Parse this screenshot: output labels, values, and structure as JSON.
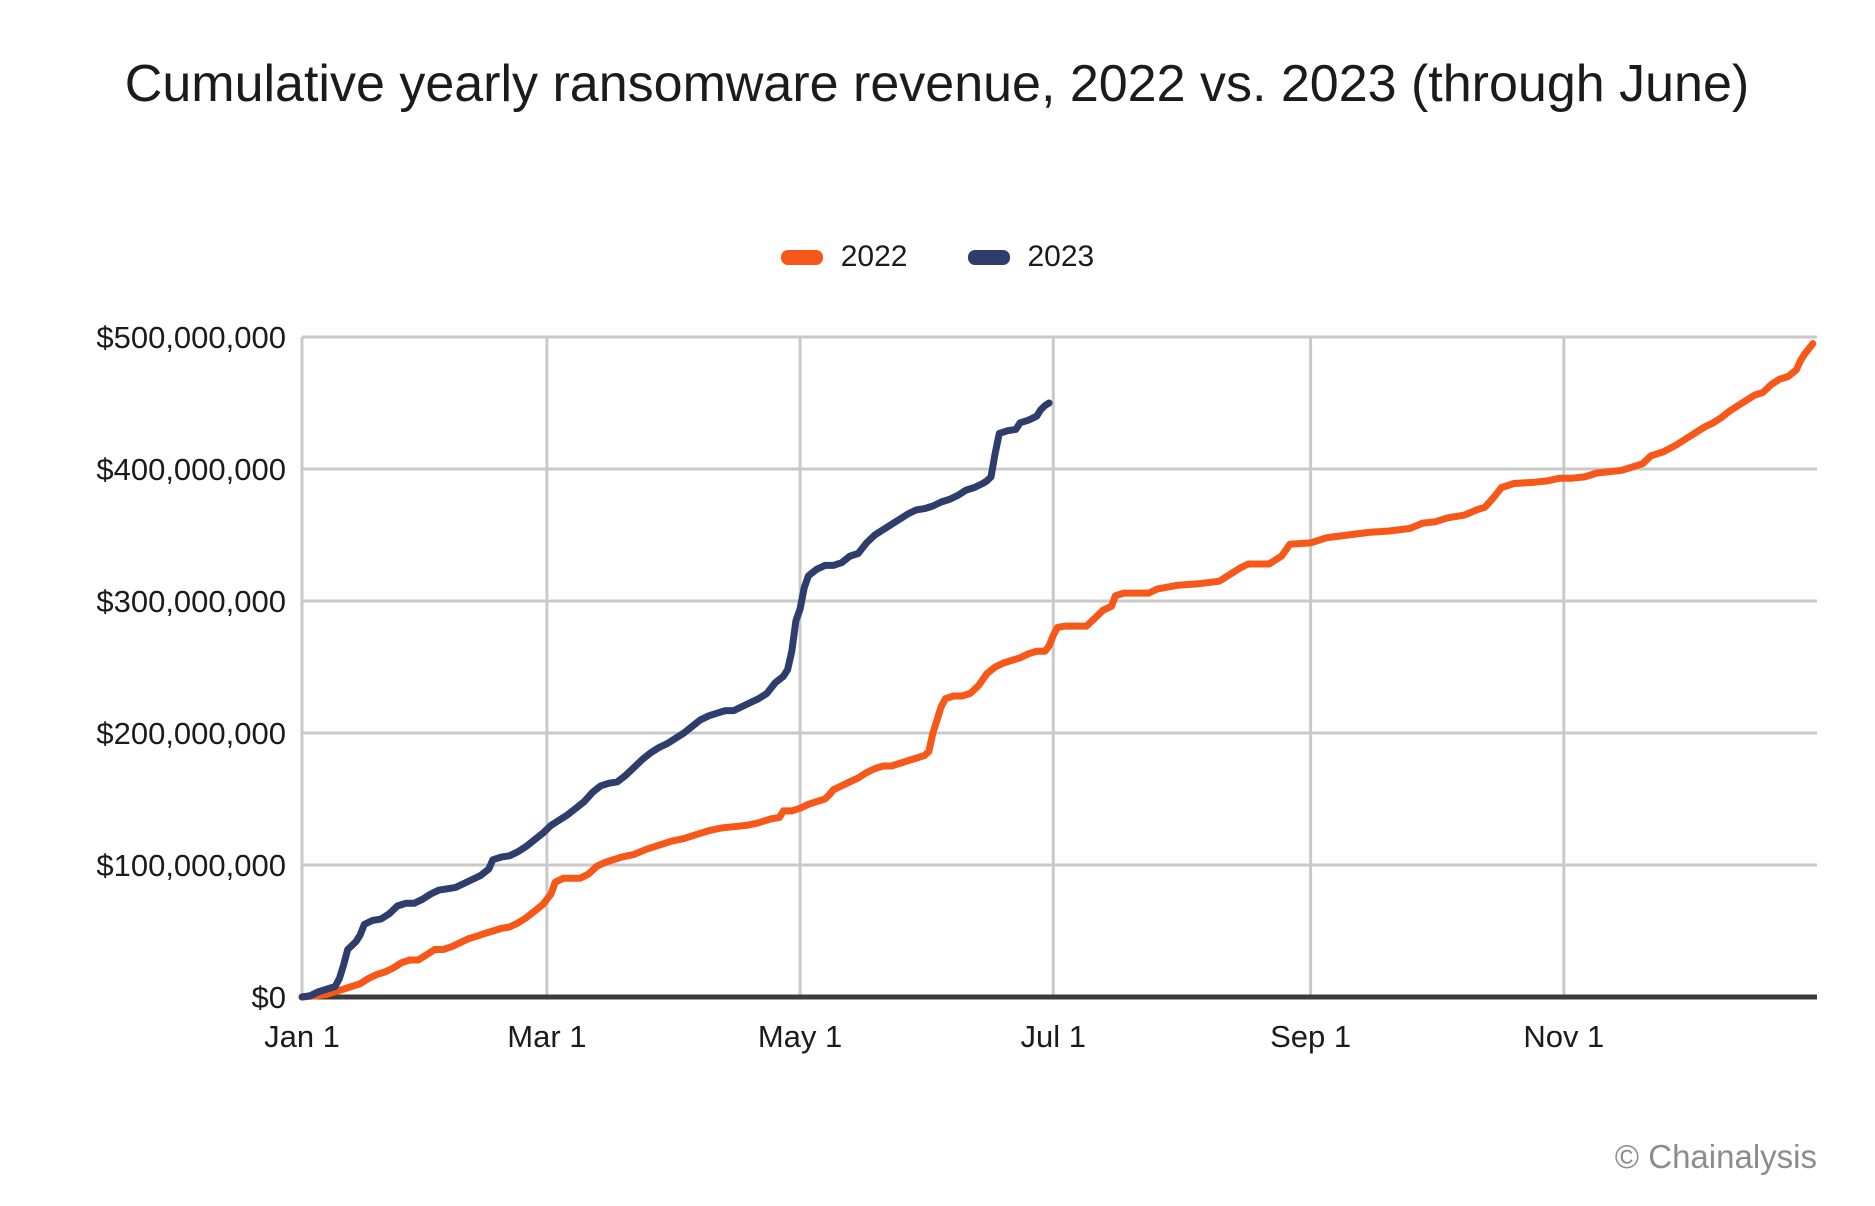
{
  "page": {
    "title": "Cumulative yearly ransomware revenue, 2022 vs. 2023 (through June)",
    "footer": "© Chainalysis",
    "background_color": "#ffffff",
    "title_color": "#1b1b1b",
    "footer_color": "#8b8b90"
  },
  "chart_data": {
    "type": "line",
    "title": "Cumulative yearly ransomware revenue, 2022 vs. 2023 (through June)",
    "x_unit": "day_of_year",
    "xlim": [
      1,
      366
    ],
    "ylim_usd": [
      0,
      500000000
    ],
    "grid": true,
    "grid_color": "#c9c9c9",
    "axis_color": "#3b3b3b",
    "legend_position": "top-center",
    "x_ticks": [
      {
        "day": 1,
        "label": "Jan 1"
      },
      {
        "day": 60,
        "label": "Mar 1"
      },
      {
        "day": 121,
        "label": "May 1"
      },
      {
        "day": 182,
        "label": "Jul 1"
      },
      {
        "day": 244,
        "label": "Sep 1"
      },
      {
        "day": 305,
        "label": "Nov 1"
      }
    ],
    "y_ticks": [
      {
        "value_usd_m": 0,
        "label": "$0"
      },
      {
        "value_usd_m": 100,
        "label": "$100,000,000"
      },
      {
        "value_usd_m": 200,
        "label": "$200,000,000"
      },
      {
        "value_usd_m": 300,
        "label": "$300,000,000"
      },
      {
        "value_usd_m": 400,
        "label": "$400,000,000"
      },
      {
        "value_usd_m": 500,
        "label": "$500,000,000"
      }
    ],
    "series": [
      {
        "name": "2022",
        "color": "#f8571a",
        "end_note": "full year, ends ~$495M",
        "points_day_usd_m": [
          [
            1,
            0
          ],
          [
            3,
            0.5
          ],
          [
            5,
            1
          ],
          [
            7,
            2
          ],
          [
            9,
            4
          ],
          [
            11,
            6
          ],
          [
            13,
            8
          ],
          [
            15,
            10
          ],
          [
            17,
            14
          ],
          [
            19,
            17
          ],
          [
            21,
            19
          ],
          [
            23,
            22
          ],
          [
            25,
            26
          ],
          [
            27,
            28
          ],
          [
            29,
            28
          ],
          [
            31,
            32
          ],
          [
            33,
            36
          ],
          [
            35,
            36
          ],
          [
            37,
            38
          ],
          [
            39,
            41
          ],
          [
            41,
            44
          ],
          [
            43,
            46
          ],
          [
            45,
            48
          ],
          [
            47,
            50
          ],
          [
            49,
            52
          ],
          [
            51,
            53
          ],
          [
            53,
            56
          ],
          [
            55,
            60
          ],
          [
            57,
            65
          ],
          [
            59,
            70
          ],
          [
            60,
            74
          ],
          [
            61,
            78
          ],
          [
            62,
            87
          ],
          [
            64,
            90
          ],
          [
            68,
            90
          ],
          [
            70,
            93
          ],
          [
            72,
            99
          ],
          [
            74,
            102
          ],
          [
            76,
            104
          ],
          [
            78,
            106
          ],
          [
            81,
            108
          ],
          [
            84,
            112
          ],
          [
            87,
            115
          ],
          [
            90,
            118
          ],
          [
            93,
            120
          ],
          [
            96,
            123
          ],
          [
            99,
            126
          ],
          [
            102,
            128
          ],
          [
            105,
            129
          ],
          [
            108,
            130
          ],
          [
            111,
            132
          ],
          [
            114,
            135
          ],
          [
            116,
            136
          ],
          [
            117,
            141
          ],
          [
            119,
            141
          ],
          [
            121,
            143
          ],
          [
            123,
            146
          ],
          [
            125,
            148
          ],
          [
            127,
            150
          ],
          [
            128,
            153
          ],
          [
            129,
            157
          ],
          [
            131,
            160
          ],
          [
            133,
            163
          ],
          [
            135,
            166
          ],
          [
            137,
            170
          ],
          [
            139,
            173
          ],
          [
            141,
            175
          ],
          [
            143,
            175
          ],
          [
            145,
            177
          ],
          [
            147,
            179
          ],
          [
            149,
            181
          ],
          [
            151,
            183
          ],
          [
            152,
            186
          ],
          [
            153,
            200
          ],
          [
            154,
            210
          ],
          [
            155,
            220
          ],
          [
            156,
            226
          ],
          [
            158,
            228
          ],
          [
            160,
            228
          ],
          [
            162,
            230
          ],
          [
            164,
            236
          ],
          [
            166,
            245
          ],
          [
            168,
            250
          ],
          [
            170,
            253
          ],
          [
            172,
            255
          ],
          [
            174,
            257
          ],
          [
            176,
            260
          ],
          [
            178,
            262
          ],
          [
            180,
            262
          ],
          [
            181,
            266
          ],
          [
            182,
            274
          ],
          [
            183,
            280
          ],
          [
            185,
            281
          ],
          [
            190,
            281
          ],
          [
            192,
            287
          ],
          [
            194,
            293
          ],
          [
            196,
            296
          ],
          [
            197,
            304
          ],
          [
            199,
            306
          ],
          [
            205,
            306
          ],
          [
            207,
            309
          ],
          [
            212,
            312
          ],
          [
            217,
            313
          ],
          [
            222,
            315
          ],
          [
            224,
            319
          ],
          [
            227,
            325
          ],
          [
            229,
            328
          ],
          [
            234,
            328
          ],
          [
            237,
            334
          ],
          [
            239,
            343
          ],
          [
            244,
            344
          ],
          [
            248,
            348
          ],
          [
            253,
            350
          ],
          [
            258,
            352
          ],
          [
            263,
            353
          ],
          [
            268,
            355
          ],
          [
            271,
            359
          ],
          [
            274,
            360
          ],
          [
            277,
            363
          ],
          [
            281,
            365
          ],
          [
            284,
            369
          ],
          [
            286,
            371
          ],
          [
            288,
            378
          ],
          [
            290,
            386
          ],
          [
            293,
            389
          ],
          [
            298,
            390
          ],
          [
            301,
            391
          ],
          [
            304,
            393
          ],
          [
            307,
            393
          ],
          [
            310,
            394
          ],
          [
            313,
            397
          ],
          [
            319,
            399
          ],
          [
            321,
            401
          ],
          [
            324,
            404
          ],
          [
            326,
            410
          ],
          [
            329,
            413
          ],
          [
            332,
            418
          ],
          [
            335,
            424
          ],
          [
            337,
            428
          ],
          [
            339,
            432
          ],
          [
            341,
            435
          ],
          [
            343,
            439
          ],
          [
            345,
            444
          ],
          [
            347,
            448
          ],
          [
            349,
            452
          ],
          [
            351,
            456
          ],
          [
            353,
            458
          ],
          [
            355,
            464
          ],
          [
            357,
            468
          ],
          [
            359,
            470
          ],
          [
            361,
            475
          ],
          [
            362,
            482
          ],
          [
            363,
            487
          ],
          [
            364,
            491
          ],
          [
            365,
            495
          ]
        ]
      },
      {
        "name": "2023",
        "color": "#2e3d6b",
        "end_note": "through June, ends ~$450M",
        "points_day_usd_m": [
          [
            1,
            0
          ],
          [
            3,
            1
          ],
          [
            5,
            4
          ],
          [
            7,
            6
          ],
          [
            9,
            8
          ],
          [
            10,
            14
          ],
          [
            11,
            24
          ],
          [
            12,
            36
          ],
          [
            14,
            42
          ],
          [
            15,
            47
          ],
          [
            16,
            55
          ],
          [
            18,
            58
          ],
          [
            20,
            59
          ],
          [
            22,
            63
          ],
          [
            24,
            69
          ],
          [
            26,
            71
          ],
          [
            28,
            71
          ],
          [
            30,
            74
          ],
          [
            32,
            78
          ],
          [
            34,
            81
          ],
          [
            36,
            82
          ],
          [
            38,
            83
          ],
          [
            40,
            86
          ],
          [
            42,
            89
          ],
          [
            44,
            92
          ],
          [
            46,
            97
          ],
          [
            47,
            104
          ],
          [
            49,
            106
          ],
          [
            51,
            107
          ],
          [
            53,
            110
          ],
          [
            55,
            114
          ],
          [
            57,
            119
          ],
          [
            59,
            124
          ],
          [
            61,
            130
          ],
          [
            63,
            134
          ],
          [
            65,
            138
          ],
          [
            67,
            143
          ],
          [
            69,
            148
          ],
          [
            71,
            155
          ],
          [
            73,
            160
          ],
          [
            75,
            162
          ],
          [
            77,
            163
          ],
          [
            79,
            168
          ],
          [
            81,
            174
          ],
          [
            83,
            180
          ],
          [
            85,
            185
          ],
          [
            87,
            189
          ],
          [
            89,
            192
          ],
          [
            91,
            196
          ],
          [
            93,
            200
          ],
          [
            95,
            205
          ],
          [
            97,
            210
          ],
          [
            99,
            213
          ],
          [
            101,
            215
          ],
          [
            103,
            217
          ],
          [
            105,
            217
          ],
          [
            107,
            220
          ],
          [
            109,
            223
          ],
          [
            111,
            226
          ],
          [
            113,
            230
          ],
          [
            115,
            238
          ],
          [
            117,
            243
          ],
          [
            118,
            248
          ],
          [
            119,
            262
          ],
          [
            120,
            285
          ],
          [
            121,
            294
          ],
          [
            122,
            310
          ],
          [
            123,
            319
          ],
          [
            125,
            324
          ],
          [
            127,
            327
          ],
          [
            129,
            327
          ],
          [
            131,
            329
          ],
          [
            133,
            334
          ],
          [
            135,
            336
          ],
          [
            137,
            344
          ],
          [
            139,
            350
          ],
          [
            141,
            354
          ],
          [
            143,
            358
          ],
          [
            145,
            362
          ],
          [
            147,
            366
          ],
          [
            149,
            369
          ],
          [
            151,
            370
          ],
          [
            153,
            372
          ],
          [
            155,
            375
          ],
          [
            157,
            377
          ],
          [
            159,
            380
          ],
          [
            161,
            384
          ],
          [
            163,
            386
          ],
          [
            165,
            389
          ],
          [
            166,
            391
          ],
          [
            167,
            394
          ],
          [
            168,
            412
          ],
          [
            169,
            427
          ],
          [
            171,
            429
          ],
          [
            173,
            430
          ],
          [
            174,
            435
          ],
          [
            176,
            437
          ],
          [
            178,
            440
          ],
          [
            179,
            445
          ],
          [
            180,
            448
          ],
          [
            181,
            450
          ]
        ]
      }
    ]
  }
}
